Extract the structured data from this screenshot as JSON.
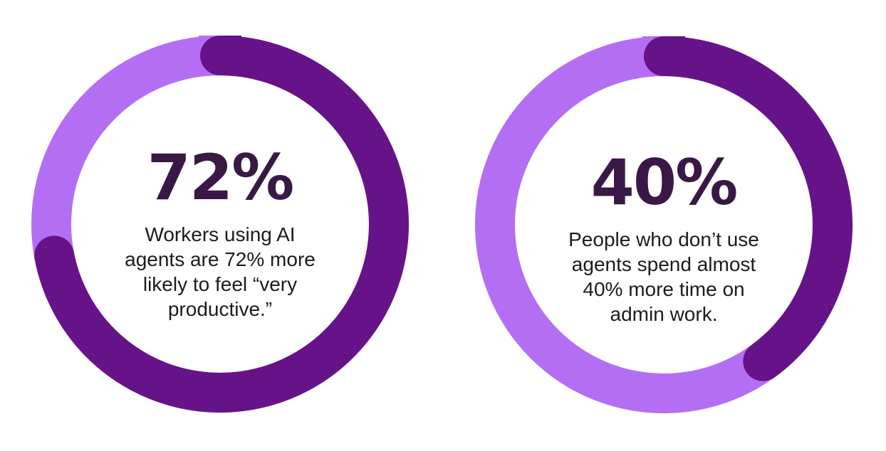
{
  "colors": {
    "remainder": "#b46ef4",
    "highlight": "#66138a",
    "value_text": "#3a1845",
    "desc_text": "#1c1c1c"
  },
  "chart_data": [
    {
      "type": "pie",
      "subtype": "donut",
      "value": 72,
      "unit": "%",
      "value_label": "72%",
      "description": "Workers using AI agents are 72% more likely to feel “very productive.”",
      "description_lines": [
        "Workers using AI",
        "agents are 72% more",
        "likely to feel “very",
        "productive.”"
      ]
    },
    {
      "type": "pie",
      "subtype": "donut",
      "value": 40,
      "unit": "%",
      "value_label": "40%",
      "description": "People who don’t use agents spend almost 40% more time on admin work.",
      "description_lines": [
        "People who don’t use",
        "agents spend almost",
        "40% more time on",
        "admin work."
      ]
    }
  ]
}
